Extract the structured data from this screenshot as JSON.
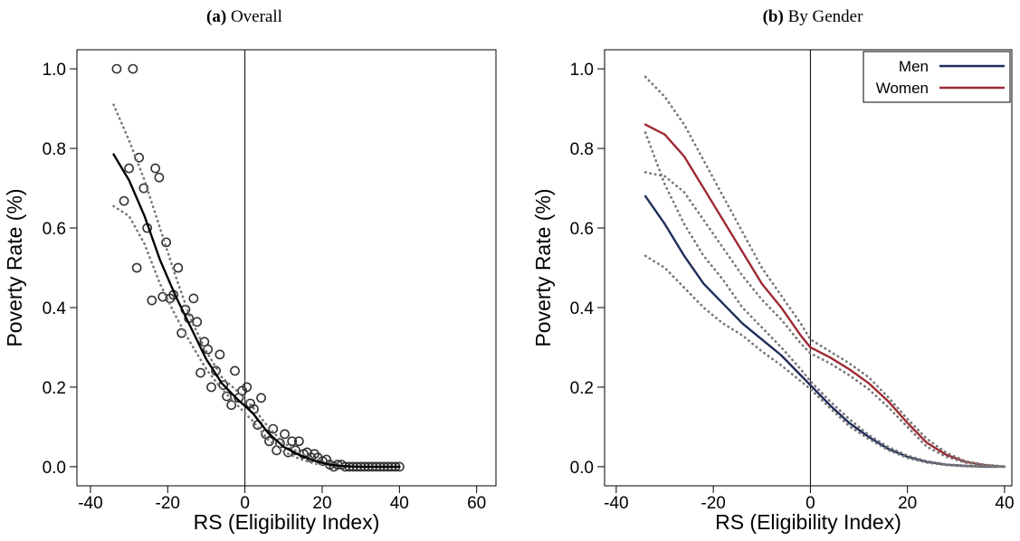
{
  "chart_data": [
    {
      "type": "line",
      "panel_label": "(a)",
      "title": "Overall",
      "x_label": "RS (Eligibility Index)",
      "y_label": "Poverty Rate (%)",
      "xlim": [
        -43.5,
        65
      ],
      "ylim": [
        -0.048,
        1.048
      ],
      "xticks": [
        -40,
        -20,
        0,
        20,
        40,
        60
      ],
      "yticks": [
        {
          "value": 0,
          "label": "0.0"
        },
        0.2,
        0.4,
        0.6,
        0.8,
        {
          "value": 1,
          "label": "1.0"
        }
      ],
      "vline": 0,
      "grid": false,
      "series": [
        {
          "kind": "scatter",
          "color": "#333333",
          "x": [
            -33.2,
            -29,
            -31.3,
            -30,
            -28,
            -27.4,
            -26.2,
            -25.3,
            -24.1,
            -23.2,
            -22.2,
            -21.3,
            -20.4,
            -19.4,
            -18.5,
            -17.3,
            -16.4,
            -15.4,
            -14.5,
            -13.3,
            -12.4,
            -11.5,
            -10.5,
            -9.6,
            -8.7,
            -7.5,
            -6.5,
            -5.6,
            -4.7,
            -3.5,
            -2.6,
            -1.6,
            -0.7,
            0.5,
            1.4,
            2.3,
            3.3,
            4.2,
            5.4,
            6.3,
            7.3,
            8.2,
            9.1,
            10.3,
            11.2,
            12.2,
            13.1,
            14,
            15.2,
            16.1,
            17.1,
            18,
            18.9,
            20.1,
            21.1,
            22,
            23,
            24,
            25,
            26,
            27,
            28,
            29,
            30,
            31,
            32,
            33,
            34,
            35,
            36,
            37,
            38,
            39,
            40
          ],
          "values": [
            1,
            1,
            0.668,
            0.75,
            0.5,
            0.777,
            0.7,
            0.6,
            0.418,
            0.75,
            0.727,
            0.427,
            0.564,
            0.423,
            0.432,
            0.5,
            0.336,
            0.395,
            0.373,
            0.423,
            0.364,
            0.236,
            0.314,
            0.295,
            0.2,
            0.241,
            0.282,
            0.205,
            0.177,
            0.155,
            0.241,
            0.173,
            0.191,
            0.2,
            0.159,
            0.145,
            0.105,
            0.173,
            0.082,
            0.064,
            0.095,
            0.041,
            0.059,
            0.082,
            0.036,
            0.064,
            0.041,
            0.064,
            0.032,
            0.036,
            0.023,
            0.032,
            0.023,
            0.014,
            0.018,
            0.005,
            0,
            0.005,
            0.005,
            0,
            0,
            0,
            0,
            0,
            0,
            0,
            0,
            0,
            0,
            0,
            0,
            0,
            0,
            0
          ]
        },
        {
          "kind": "line",
          "dash": "dotted",
          "color": "#777777",
          "x": [
            -34,
            -30,
            -26,
            -22,
            -18,
            -14,
            -10,
            -6,
            -2,
            2,
            6,
            10,
            14,
            18,
            22,
            26,
            30,
            34,
            40
          ],
          "values": [
            0.91,
            0.82,
            0.72,
            0.6,
            0.48,
            0.37,
            0.29,
            0.225,
            0.19,
            0.15,
            0.1,
            0.06,
            0.035,
            0.02,
            0.008,
            0.002,
            0,
            0,
            0
          ]
        },
        {
          "kind": "line",
          "dash": "dotted",
          "color": "#777777",
          "x": [
            -34,
            -30,
            -26,
            -22,
            -18,
            -14,
            -10,
            -6,
            -2,
            2,
            6,
            10,
            14,
            18,
            22,
            26,
            30,
            34,
            40
          ],
          "values": [
            0.655,
            0.63,
            0.56,
            0.46,
            0.38,
            0.31,
            0.245,
            0.195,
            0.155,
            0.115,
            0.068,
            0.038,
            0.02,
            0.008,
            0.002,
            0,
            0,
            0,
            0
          ]
        },
        {
          "kind": "line",
          "color": "#000000",
          "x": [
            -34,
            -30,
            -26,
            -22,
            -18,
            -14,
            -10,
            -6,
            -2,
            2,
            6,
            10,
            14,
            18,
            22,
            26,
            30,
            34,
            40
          ],
          "values": [
            0.785,
            0.72,
            0.63,
            0.52,
            0.43,
            0.35,
            0.27,
            0.21,
            0.17,
            0.135,
            0.085,
            0.05,
            0.03,
            0.015,
            0.005,
            0.001,
            0,
            0,
            0
          ]
        }
      ]
    },
    {
      "type": "line",
      "panel_label": "(b)",
      "title": "By Gender",
      "x_label": "RS (Eligibility Index)",
      "y_label": "Poverty Rate (%)",
      "xlim": [
        -42.4,
        41.5
      ],
      "ylim": [
        -0.048,
        1.048
      ],
      "xticks": [
        -40,
        -20,
        0,
        20,
        40
      ],
      "yticks": [
        {
          "value": 0,
          "label": "0.0"
        },
        0.2,
        0.4,
        0.6,
        0.8,
        {
          "value": 1,
          "label": "1.0"
        }
      ],
      "vline": 0,
      "grid": false,
      "legend": "upper right",
      "series": [
        {
          "name": "Men",
          "kind": "line",
          "color": "#1f2d5a",
          "x": [
            -34,
            -30,
            -26,
            -22,
            -18,
            -14,
            -10,
            -6,
            -2,
            0,
            4,
            8,
            12,
            16,
            20,
            24,
            28,
            32,
            36,
            40
          ],
          "values": [
            0.68,
            0.61,
            0.53,
            0.46,
            0.41,
            0.36,
            0.32,
            0.28,
            0.23,
            0.205,
            0.155,
            0.11,
            0.075,
            0.045,
            0.025,
            0.012,
            0.005,
            0.002,
            0,
            0
          ]
        },
        {
          "name": "Women",
          "kind": "line",
          "color": "#9e2a35",
          "x": [
            -34,
            -30,
            -26,
            -22,
            -18,
            -14,
            -10,
            -6,
            -2,
            0,
            4,
            8,
            12,
            16,
            20,
            24,
            28,
            32,
            36,
            40
          ],
          "values": [
            0.86,
            0.835,
            0.78,
            0.7,
            0.62,
            0.54,
            0.46,
            0.4,
            0.33,
            0.3,
            0.275,
            0.245,
            0.21,
            0.165,
            0.11,
            0.06,
            0.03,
            0.012,
            0.004,
            0
          ]
        },
        {
          "kind": "line",
          "dash": "dotted",
          "color": "#777777",
          "x": [
            -34,
            -30,
            -26,
            -22,
            -18,
            -14,
            -10,
            -6,
            -2,
            0,
            4,
            8,
            12,
            16,
            20,
            24,
            28,
            32,
            36,
            40
          ],
          "values": [
            0.84,
            0.71,
            0.61,
            0.53,
            0.47,
            0.4,
            0.35,
            0.3,
            0.245,
            0.215,
            0.165,
            0.12,
            0.08,
            0.05,
            0.028,
            0.014,
            0.006,
            0.002,
            0.001,
            0
          ]
        },
        {
          "kind": "line",
          "dash": "dotted",
          "color": "#777777",
          "x": [
            -34,
            -30,
            -26,
            -22,
            -18,
            -14,
            -10,
            -6,
            -2,
            0,
            4,
            8,
            12,
            16,
            20,
            24,
            28,
            32,
            36,
            40
          ],
          "values": [
            0.53,
            0.5,
            0.45,
            0.4,
            0.36,
            0.33,
            0.29,
            0.255,
            0.215,
            0.195,
            0.148,
            0.102,
            0.07,
            0.042,
            0.022,
            0.01,
            0.004,
            0.001,
            0,
            0
          ]
        },
        {
          "kind": "line",
          "dash": "dotted",
          "color": "#777777",
          "x": [
            -34,
            -30,
            -26,
            -22,
            -18,
            -14,
            -10,
            -6,
            -2,
            0,
            4,
            8,
            12,
            16,
            20,
            24,
            28,
            32,
            36,
            40
          ],
          "values": [
            0.98,
            0.93,
            0.86,
            0.77,
            0.68,
            0.59,
            0.5,
            0.43,
            0.36,
            0.32,
            0.29,
            0.26,
            0.225,
            0.175,
            0.12,
            0.07,
            0.035,
            0.014,
            0.005,
            0.001
          ]
        },
        {
          "kind": "line",
          "dash": "dotted",
          "color": "#777777",
          "x": [
            -34,
            -30,
            -26,
            -22,
            -18,
            -14,
            -10,
            -6,
            -2,
            0,
            4,
            8,
            12,
            16,
            20,
            24,
            28,
            32,
            36,
            40
          ],
          "values": [
            0.74,
            0.73,
            0.69,
            0.62,
            0.55,
            0.48,
            0.42,
            0.37,
            0.31,
            0.285,
            0.26,
            0.23,
            0.195,
            0.15,
            0.1,
            0.05,
            0.025,
            0.01,
            0.003,
            0
          ]
        }
      ]
    }
  ]
}
